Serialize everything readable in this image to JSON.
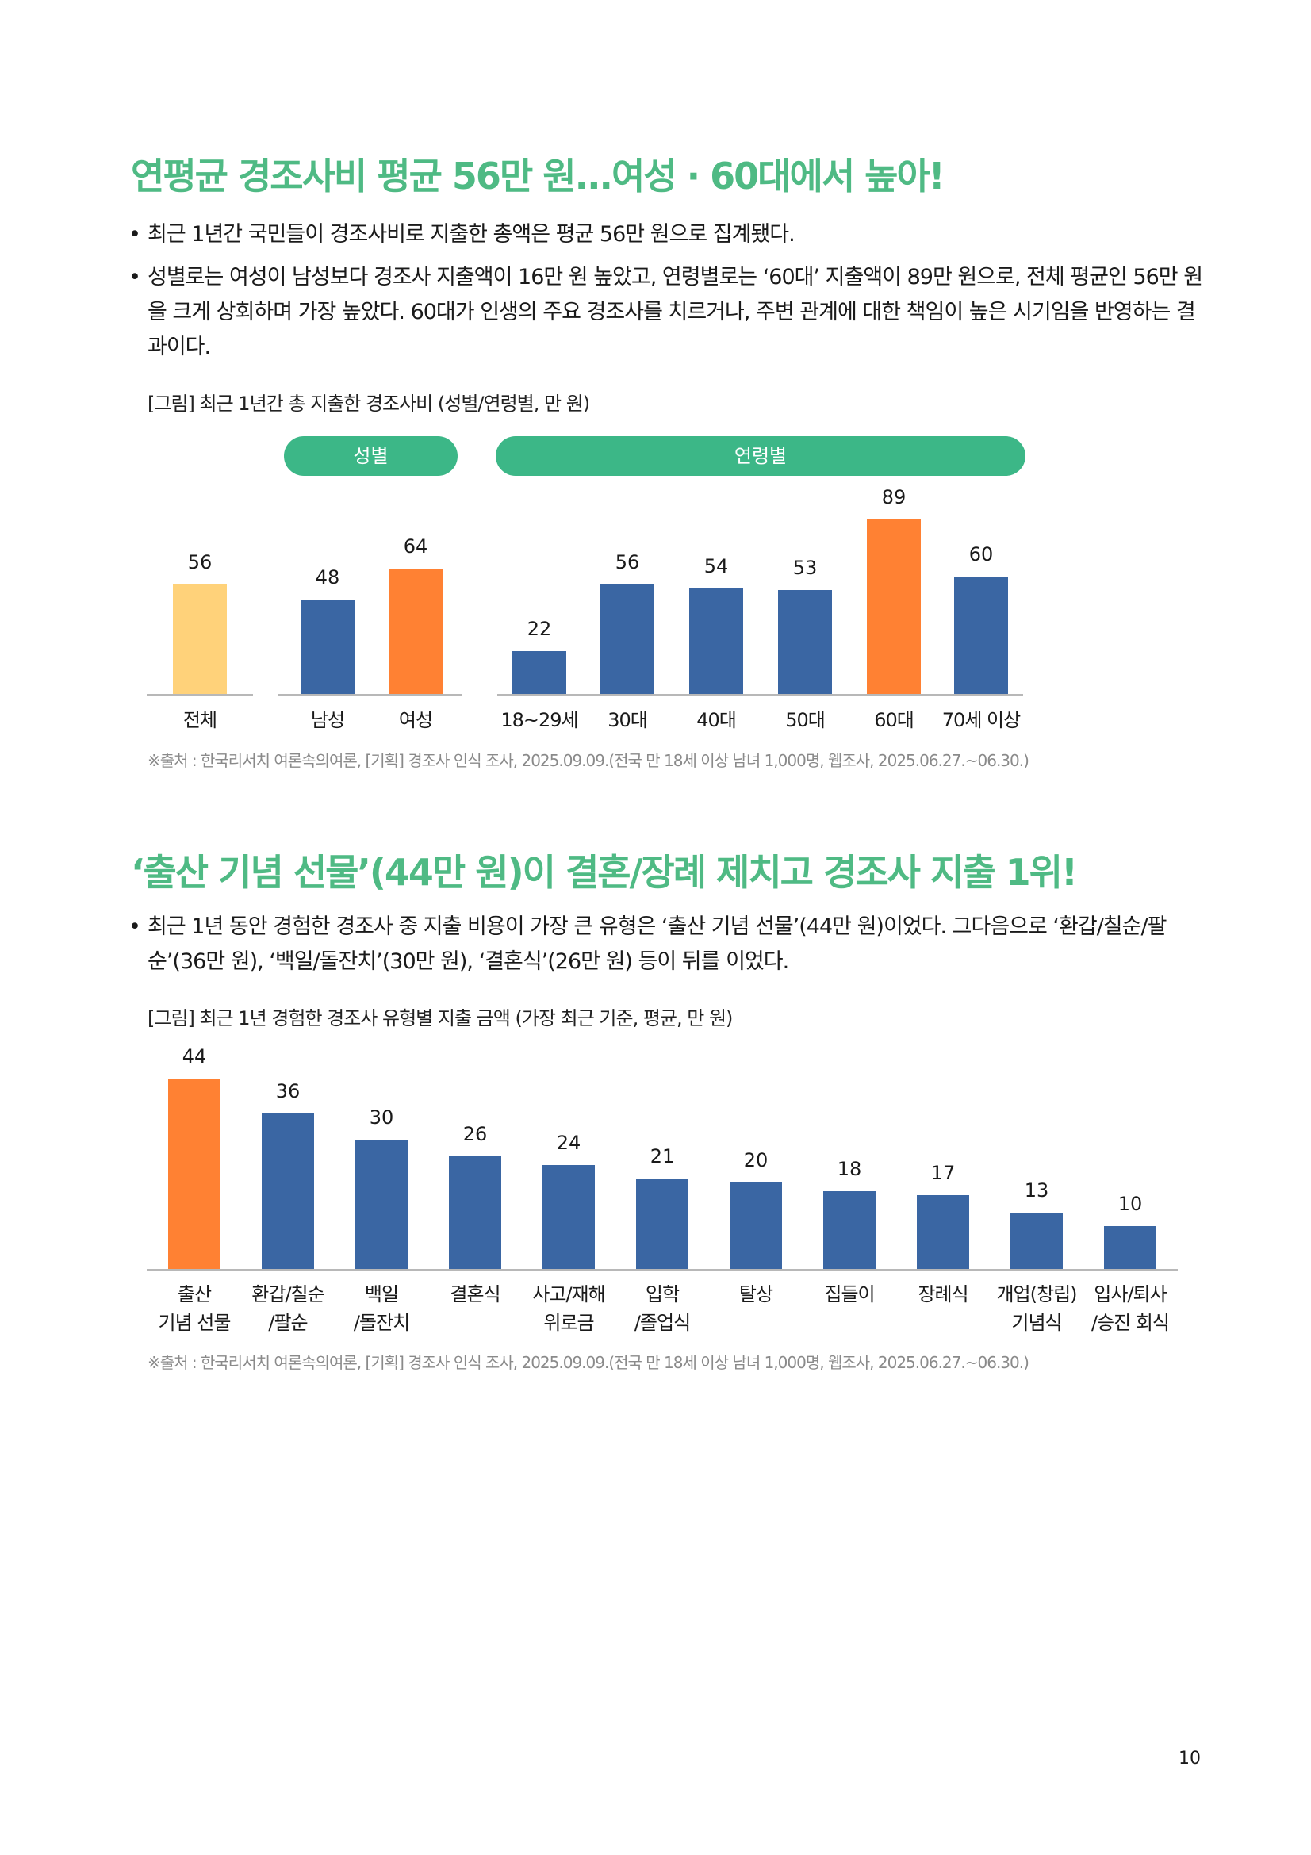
{
  "section1": {
    "title": "연평균 경조사비 평균 56만 원...여성 · 60대에서 높아!",
    "bullets": [
      "최근 1년간 국민들이 경조사비로 지출한 총액은 평균 56만 원으로 집계됐다.",
      "성별로는 여성이 남성보다 경조사 지출액이 16만 원 높았고, 연령별로는 ‘60대’ 지출액이 89만 원으로, 전체 평균인 56만 원을 크게 상회하며 가장 높았다. 60대가 인생의 주요 경조사를 치르거나, 주변 관계에 대한 책임이 높은 시기임을 반영하는 결과이다."
    ],
    "caption": "[그림] 최근 1년간 총 지출한 경조사비 (성별/연령별, 만 원)",
    "group_labels": {
      "gender": "성별",
      "age": "연령별"
    },
    "source": "※출처 : 한국리서치 여론속의여론, [기획] 경조사 인식 조사, 2025.09.09.(전국 만 18세 이상 남녀 1,000명, 웹조사, 2025.06.27.~06.30.)"
  },
  "section2": {
    "title": "‘출산 기념 선물’(44만 원)이 결혼/장례 제치고 경조사 지출 1위!",
    "bullets": [
      "최근 1년 동안 경험한 경조사 중 지출 비용이 가장 큰 유형은 ‘출산 기념 선물’(44만 원)이었다. 그다음으로 ‘환갑/칠순/팔순’(36만 원), ‘백일/돌잔치’(30만 원), ‘결혼식’(26만 원) 등이 뒤를 이었다."
    ],
    "caption": "[그림] 최근 1년 경험한 경조사 유형별 지출 금액 (가장 최근 기준, 평균, 만 원)",
    "source": "※출처 : 한국리서치 여론속의여론, [기획] 경조사 인식 조사, 2025.09.09.(전국 만 18세 이상 남녀 1,000명, 웹조사, 2025.06.27.~06.30.)"
  },
  "page_number": "10",
  "colors": {
    "title": "#4fba84",
    "pill": "#3cb787",
    "blue": "#3a66a3",
    "orange": "#ff8133",
    "yellow": "#ffd27a"
  },
  "chart_data": [
    {
      "type": "bar",
      "title": "[그림] 최근 1년간 총 지출한 경조사비 (성별/연령별, 만 원)",
      "categories": [
        "전체",
        "남성",
        "여성",
        "18~29세",
        "30대",
        "40대",
        "50대",
        "60대",
        "70세 이상"
      ],
      "values": [
        56,
        48,
        64,
        22,
        56,
        54,
        53,
        89,
        60
      ],
      "bar_colors": [
        "#ffd27a",
        "#3a66a3",
        "#ff8133",
        "#3a66a3",
        "#3a66a3",
        "#3a66a3",
        "#3a66a3",
        "#ff8133",
        "#3a66a3"
      ],
      "groups": [
        {
          "label": "",
          "categories": [
            "전체"
          ]
        },
        {
          "label": "성별",
          "categories": [
            "남성",
            "여성"
          ]
        },
        {
          "label": "연령별",
          "categories": [
            "18~29세",
            "30대",
            "40대",
            "50대",
            "60대",
            "70세 이상"
          ]
        }
      ],
      "data_labels": true,
      "grid": false
    },
    {
      "type": "bar",
      "title": "[그림] 최근 1년 경험한 경조사 유형별 지출 금액 (가장 최근 기준, 평균, 만 원)",
      "categories": [
        [
          "출산",
          "기념 선물"
        ],
        [
          "환갑/칠순",
          "/팔순"
        ],
        [
          "백일",
          "/돌잔치"
        ],
        [
          "결혼식",
          ""
        ],
        [
          "사고/재해",
          "위로금"
        ],
        [
          "입학",
          "/졸업식"
        ],
        [
          "탈상",
          ""
        ],
        [
          "집들이",
          ""
        ],
        [
          "장례식",
          ""
        ],
        [
          "개업(창립)",
          "기념식"
        ],
        [
          "입사/퇴사",
          "/승진 회식"
        ]
      ],
      "values": [
        44,
        36,
        30,
        26,
        24,
        21,
        20,
        18,
        17,
        13,
        10
      ],
      "bar_colors": [
        "#ff8133",
        "#3a66a3",
        "#3a66a3",
        "#3a66a3",
        "#3a66a3",
        "#3a66a3",
        "#3a66a3",
        "#3a66a3",
        "#3a66a3",
        "#3a66a3",
        "#3a66a3"
      ],
      "data_labels": true,
      "grid": false
    }
  ]
}
